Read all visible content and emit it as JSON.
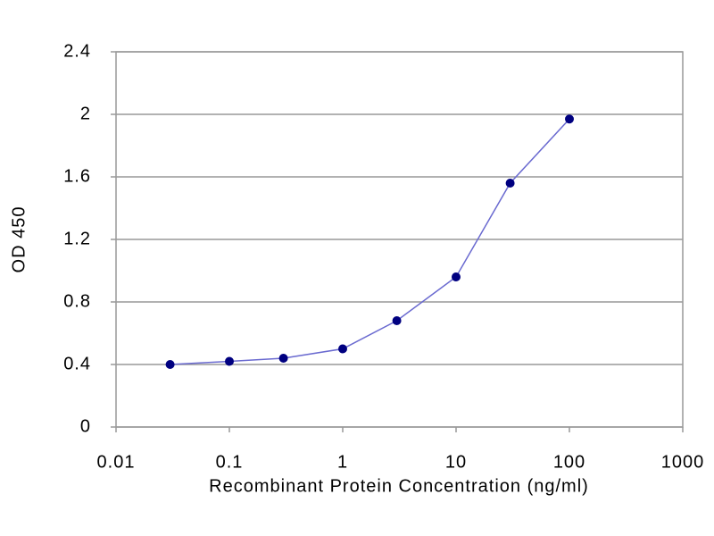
{
  "chart_data": {
    "type": "line",
    "x_label": "Recombinant Protein Concentration (ng/ml)",
    "y_label": "OD 450",
    "x": [
      0.03,
      0.1,
      0.3,
      1,
      3,
      10,
      30,
      100
    ],
    "series": [
      {
        "color": "#6a6ad0",
        "marker_color": "#000080",
        "values": [
          0.4,
          0.42,
          0.44,
          0.5,
          0.68,
          0.96,
          1.56,
          1.97
        ]
      }
    ],
    "xscale": "log",
    "xlim": [
      0.01,
      1000
    ],
    "xticks": [
      0.01,
      0.1,
      1,
      10,
      100,
      1000
    ],
    "ylim": [
      0,
      2.4
    ],
    "yticks": [
      0,
      0.4,
      0.8,
      1.2,
      1.6,
      2,
      2.4
    ],
    "grid": true
  }
}
